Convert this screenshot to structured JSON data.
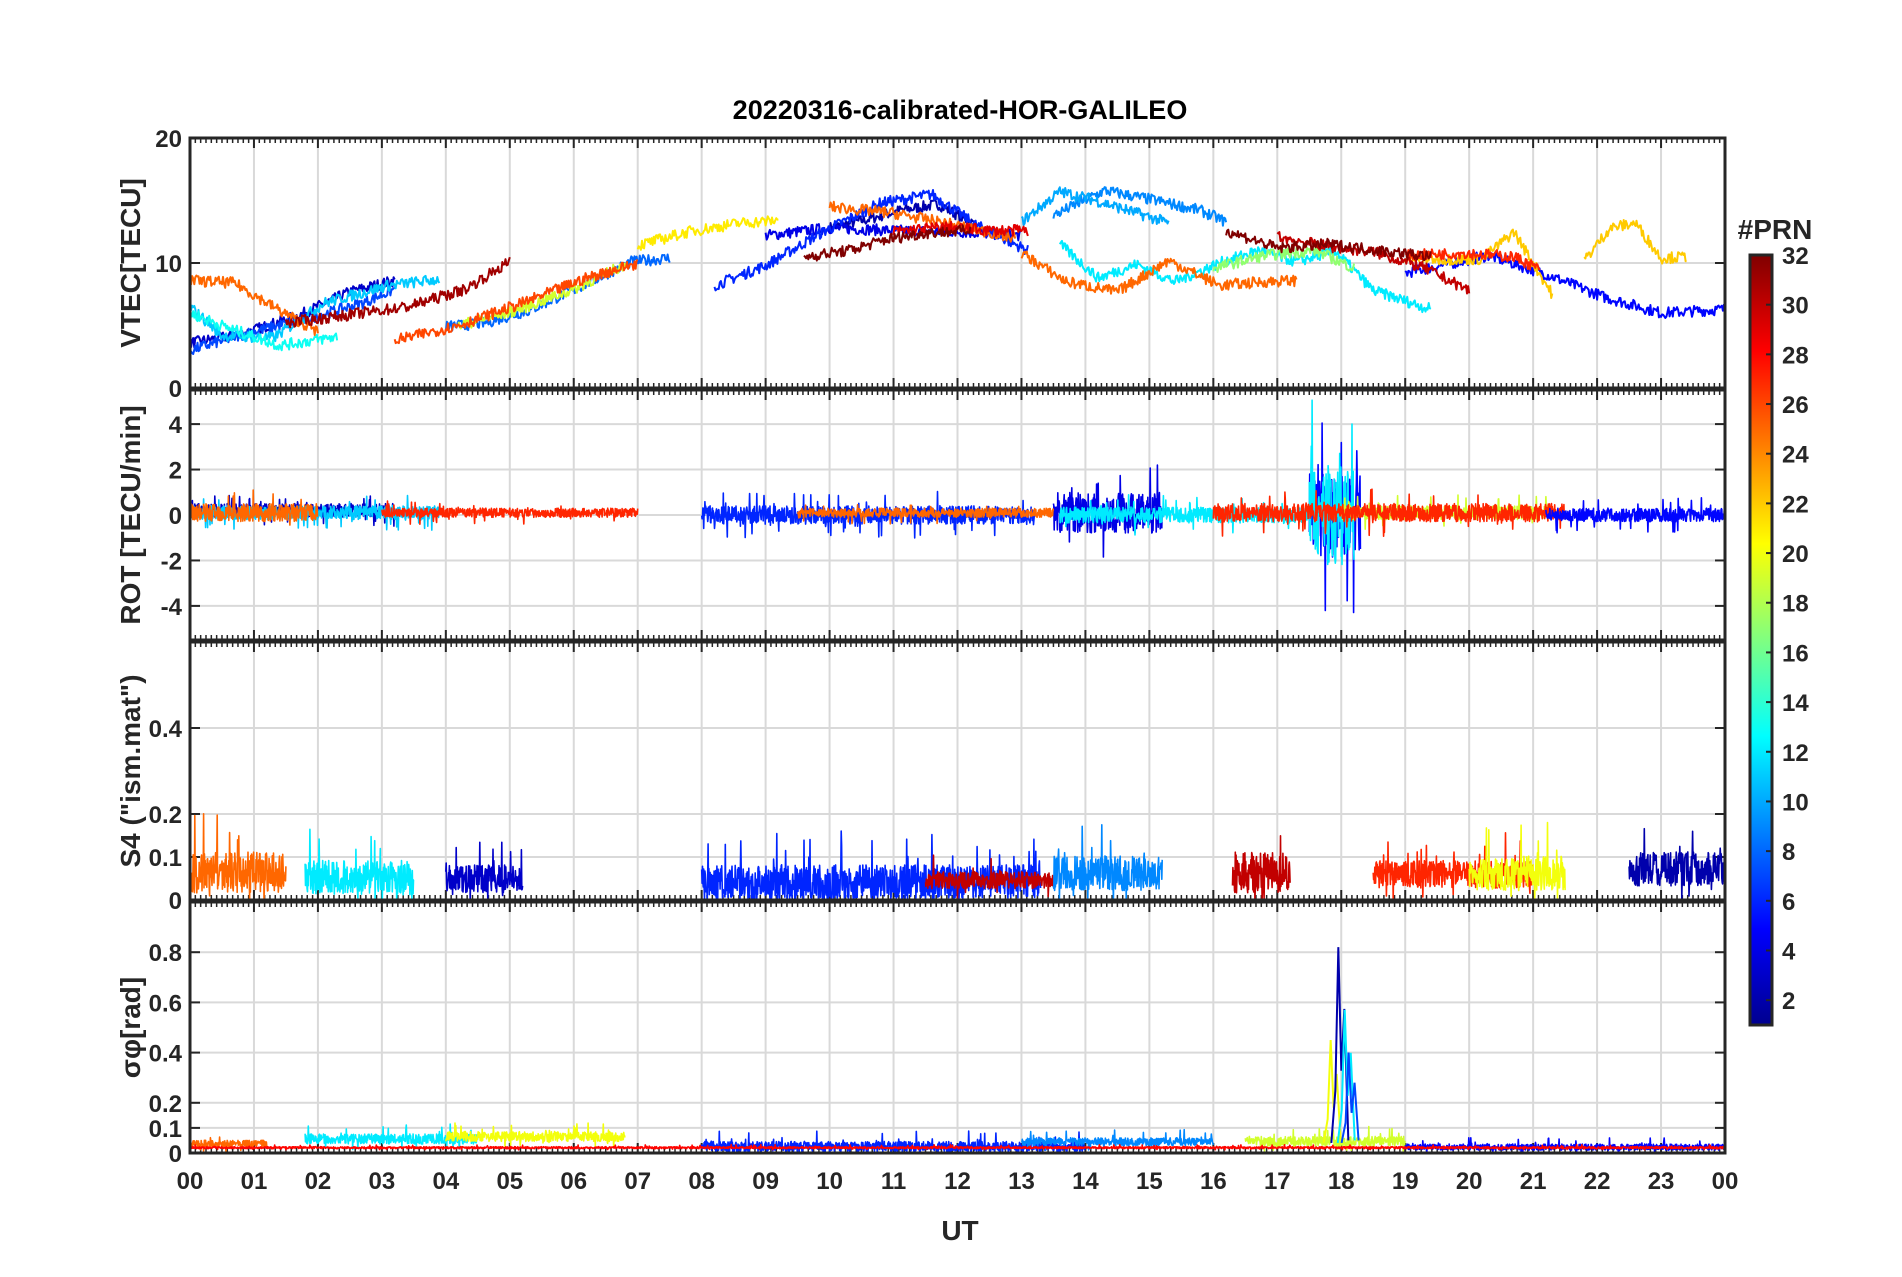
{
  "chart_data": {
    "type": "line",
    "title": "20220316-calibrated-HOR-GALILEO",
    "xlabel": "UT",
    "x_tick_labels": [
      "00",
      "01",
      "02",
      "03",
      "04",
      "05",
      "06",
      "07",
      "08",
      "09",
      "10",
      "11",
      "12",
      "13",
      "14",
      "15",
      "16",
      "17",
      "18",
      "19",
      "20",
      "21",
      "22",
      "23",
      "00"
    ],
    "xlim": [
      0,
      24
    ],
    "grid": true,
    "colorbar": {
      "title": "#PRN",
      "range": [
        1,
        32
      ],
      "tick_labels": [
        "2",
        "4",
        "6",
        "8",
        "10",
        "12",
        "14",
        "16",
        "18",
        "20",
        "22",
        "24",
        "26",
        "28",
        "30",
        "32"
      ],
      "colormap": [
        "#00008f",
        "#0000ff",
        "#0080ff",
        "#00ffff",
        "#80ff80",
        "#ffff00",
        "#ff8000",
        "#ff0000",
        "#800000"
      ]
    },
    "panels": [
      {
        "id": "vtec",
        "ylabel": "VTEC[TECU]",
        "ylim": [
          0,
          20
        ],
        "y_tick_labels": [
          "0",
          "10",
          "20"
        ],
        "series": [
          {
            "prn": 2,
            "t": [
              10.0,
              10.6,
              11.1,
              11.7,
              12.3
            ],
            "y": [
              12.8,
              13.5,
              14.2,
              14.7,
              13.0
            ]
          },
          {
            "prn": 3,
            "t": [
              0.0,
              0.8,
              1.7,
              2.5,
              3.2
            ],
            "y": [
              3.6,
              4.3,
              5.8,
              7.7,
              8.6
            ]
          },
          {
            "prn": 4,
            "t": [
              9.0,
              10.0,
              11.0,
              12.0,
              13.0
            ],
            "y": [
              12.2,
              12.8,
              12.6,
              12.5,
              12.2
            ]
          },
          {
            "prn": 5,
            "t": [
              19.0,
              20.3,
              21.2,
              22.1,
              23.0,
              24.0
            ],
            "y": [
              9.2,
              10.6,
              9.1,
              7.3,
              6.0,
              6.3
            ]
          },
          {
            "prn": 6,
            "t": [
              8.2,
              9.0,
              9.9,
              10.8,
              11.6,
              12.3,
              13.1
            ],
            "y": [
              8.2,
              9.8,
              12.5,
              14.8,
              15.5,
              13.0,
              11.0
            ]
          },
          {
            "prn": 7,
            "t": [
              0.0,
              0.9,
              1.8,
              2.7,
              3.2
            ],
            "y": [
              3.0,
              4.4,
              5.5,
              6.8,
              7.9
            ]
          },
          {
            "prn": 8,
            "t": [
              4.0,
              4.6,
              5.3,
              6.1,
              6.9,
              7.5
            ],
            "y": [
              4.9,
              5.2,
              6.2,
              8.1,
              10.1,
              10.4
            ]
          },
          {
            "prn": 9,
            "t": [
              13.5,
              14.3,
              15.1,
              15.8,
              16.2
            ],
            "y": [
              13.8,
              15.8,
              15.0,
              14.2,
              13.3
            ]
          },
          {
            "prn": 10,
            "t": [
              13.0,
              13.6,
              14.1,
              14.8,
              15.3
            ],
            "y": [
              13.3,
              15.7,
              15.1,
              14.0,
              13.2
            ]
          },
          {
            "prn": 11,
            "t": [
              0.0,
              0.5,
              1.3,
              2.1,
              3.1,
              3.9
            ],
            "y": [
              6.5,
              4.2,
              4.0,
              6.8,
              8.2,
              8.7
            ]
          },
          {
            "prn": 12,
            "t": [
              13.6,
              14.2,
              14.8,
              15.4,
              16.1,
              16.7,
              17.3,
              17.9,
              18.5,
              19.4
            ],
            "y": [
              11.5,
              8.8,
              9.9,
              8.5,
              10.0,
              11.0,
              10.1,
              11.0,
              7.8,
              6.3
            ]
          },
          {
            "prn": 13,
            "t": [
              0.0,
              0.6,
              1.4,
              2.3
            ],
            "y": [
              6.0,
              4.8,
              3.4,
              4.1
            ]
          },
          {
            "prn": 17,
            "t": [
              16.0,
              16.8,
              17.6,
              18.2
            ],
            "y": [
              9.6,
              10.6,
              11.0,
              9.6
            ]
          },
          {
            "prn": 19,
            "t": [
              4.2,
              5.1,
              6.0,
              6.8
            ],
            "y": [
              5.0,
              6.2,
              7.9,
              9.9
            ]
          },
          {
            "prn": 21,
            "t": [
              7.0,
              7.8,
              8.6,
              9.2
            ],
            "y": [
              11.4,
              12.5,
              13.2,
              13.4
            ]
          },
          {
            "prn": 22,
            "t": [
              19.0,
              19.6,
              20.2,
              20.7,
              21.3
            ],
            "y": [
              10.4,
              10.3,
              10.3,
              12.5,
              7.5
            ]
          },
          {
            "prn": 22,
            "t": [
              21.8,
              22.2,
              22.6,
              23.0,
              23.4
            ],
            "y": [
              10.2,
              12.8,
              13.2,
              10.4,
              10.5
            ]
          },
          {
            "prn": 25,
            "t": [
              0.0,
              0.7,
              1.4,
              2.0
            ],
            "y": [
              8.6,
              8.4,
              6.2,
              4.5
            ]
          },
          {
            "prn": 25,
            "t": [
              10.0,
              11.0,
              12.0,
              12.9
            ],
            "y": [
              14.5,
              14.0,
              13.0,
              12.0
            ]
          },
          {
            "prn": 25,
            "t": [
              13.0,
              13.7,
              14.5,
              15.3,
              16.1,
              16.8,
              17.3
            ],
            "y": [
              10.8,
              8.5,
              7.7,
              10.2,
              8.2,
              8.5,
              8.6
            ]
          },
          {
            "prn": 26,
            "t": [
              3.2,
              4.2,
              5.2,
              6.2,
              7.0
            ],
            "y": [
              3.8,
              5.0,
              6.8,
              8.8,
              10.0
            ]
          },
          {
            "prn": 27,
            "t": [
              19.0,
              19.9,
              20.7,
              21.1
            ],
            "y": [
              10.6,
              10.8,
              10.5,
              9.5
            ]
          },
          {
            "prn": 29,
            "t": [
              11.0,
              11.8,
              12.5,
              13.1
            ],
            "y": [
              12.5,
              12.9,
              12.6,
              12.6
            ]
          },
          {
            "prn": 30,
            "t": [
              17.0,
              17.8,
              18.5,
              19.3,
              20.0
            ],
            "y": [
              12.1,
              11.3,
              10.9,
              9.6,
              7.8
            ]
          },
          {
            "prn": 31,
            "t": [
              1.5,
              2.4,
              3.4,
              4.3,
              5.0
            ],
            "y": [
              5.2,
              5.8,
              6.5,
              7.9,
              10.1
            ]
          },
          {
            "prn": 32,
            "t": [
              9.6,
              10.3,
              10.9,
              11.5,
              12.2
            ],
            "y": [
              10.5,
              11.0,
              11.9,
              12.4,
              12.6
            ]
          },
          {
            "prn": 32,
            "t": [
              16.2,
              17.0,
              17.8,
              18.6,
              19.4
            ],
            "y": [
              12.6,
              11.2,
              11.5,
              11.0,
              10.5
            ]
          }
        ]
      },
      {
        "id": "rot",
        "ylabel": "ROT [TECU/min]",
        "ylim": [
          -5.5,
          5.5
        ],
        "y_tick_labels": [
          "-4",
          "-2",
          "0",
          "2",
          "4"
        ],
        "series": [
          {
            "prn": 3,
            "t": [
              0.0,
              3.2
            ],
            "y": [
              0.2,
              0.2
            ],
            "spread": 0.6
          },
          {
            "prn": 4,
            "t": [
              13.5,
              15.2
            ],
            "y": [
              0.1,
              0.1
            ],
            "spread": 1.8
          },
          {
            "prn": 11,
            "t": [
              0.0,
              3.9
            ],
            "y": [
              0.1,
              0.1
            ],
            "spread": 0.6
          },
          {
            "prn": 25,
            "t": [
              0.0,
              2.0
            ],
            "y": [
              0.1,
              0.1
            ],
            "spread": 0.8
          },
          {
            "prn": 6,
            "t": [
              8.0,
              13.2
            ],
            "y": [
              0.0,
              0.0
            ],
            "spread": 0.8
          },
          {
            "prn": 25,
            "t": [
              9.5,
              13.5
            ],
            "y": [
              0.1,
              0.1
            ],
            "spread": 0.4
          },
          {
            "prn": 27,
            "t": [
              3.0,
              7.0
            ],
            "y": [
              0.1,
              0.1
            ],
            "spread": 0.4
          },
          {
            "prn": 12,
            "t": [
              13.6,
              17.6
            ],
            "y": [
              0.0,
              0.0
            ],
            "spread": 0.7
          },
          {
            "prn": 5,
            "t": [
              17.5,
              18.3
            ],
            "y": [
              0.0,
              0.0
            ],
            "spread": 3.6
          },
          {
            "prn": 12,
            "t": [
              17.5,
              18.2
            ],
            "y": [
              0.0,
              0.0
            ],
            "spread": 4.4
          },
          {
            "prn": 19,
            "t": [
              18.0,
              21.3
            ],
            "y": [
              0.1,
              0.1
            ],
            "spread": 0.6
          },
          {
            "prn": 27,
            "t": [
              16.0,
              21.5
            ],
            "y": [
              0.1,
              0.1
            ],
            "spread": 0.8
          },
          {
            "prn": 5,
            "t": [
              21.2,
              24.0
            ],
            "y": [
              0.0,
              0.0
            ],
            "spread": 0.6
          }
        ]
      },
      {
        "id": "s4",
        "ylabel": "S4 (\"ism.mat\")",
        "ylim": [
          0,
          0.6
        ],
        "y_tick_labels": [
          "0",
          "0.1",
          "0.2",
          "0.4"
        ],
        "series": [
          {
            "prn": 25,
            "t": [
              0.0,
              1.5
            ],
            "y": [
              0.05,
              0.05
            ],
            "spread": 0.12
          },
          {
            "prn": 12,
            "t": [
              1.8,
              3.5
            ],
            "y": [
              0.04,
              0.04
            ],
            "spread": 0.1
          },
          {
            "prn": 3,
            "t": [
              4.0,
              5.2
            ],
            "y": [
              0.04,
              0.04
            ],
            "spread": 0.08
          },
          {
            "prn": 6,
            "t": [
              8.0,
              13.3
            ],
            "y": [
              0.03,
              0.03
            ],
            "spread": 0.1
          },
          {
            "prn": 30,
            "t": [
              11.5,
              13.5
            ],
            "y": [
              0.04,
              0.04
            ],
            "spread": 0.05
          },
          {
            "prn": 9,
            "t": [
              13.5,
              15.2
            ],
            "y": [
              0.05,
              0.05
            ],
            "spread": 0.1
          },
          {
            "prn": 30,
            "t": [
              16.3,
              17.2
            ],
            "y": [
              0.05,
              0.05
            ],
            "spread": 0.12
          },
          {
            "prn": 27,
            "t": [
              18.5,
              21.0
            ],
            "y": [
              0.05,
              0.05
            ],
            "spread": 0.08
          },
          {
            "prn": 20,
            "t": [
              20.0,
              21.5
            ],
            "y": [
              0.05,
              0.05
            ],
            "spread": 0.1
          },
          {
            "prn": 2,
            "t": [
              22.5,
              24.0
            ],
            "y": [
              0.06,
              0.06
            ],
            "spread": 0.1
          }
        ]
      },
      {
        "id": "sigma",
        "ylabel": "σφ[rad]",
        "ylim": [
          0,
          1.0
        ],
        "y_tick_labels": [
          "0",
          "0.1",
          "0.2",
          "0.4",
          "0.6",
          "0.8"
        ],
        "series": [
          {
            "prn": 25,
            "t": [
              0.0,
              1.2
            ],
            "y": [
              0.03,
              0.03
            ],
            "spread": 0.04
          },
          {
            "prn": 12,
            "t": [
              1.8,
              4.5
            ],
            "y": [
              0.05,
              0.05
            ],
            "spread": 0.05
          },
          {
            "prn": 20,
            "t": [
              4.0,
              6.8
            ],
            "y": [
              0.06,
              0.06
            ],
            "spread": 0.05
          },
          {
            "prn": 6,
            "t": [
              8.0,
              14.0
            ],
            "y": [
              0.02,
              0.02
            ],
            "spread": 0.05
          },
          {
            "prn": 9,
            "t": [
              13.0,
              16.0
            ],
            "y": [
              0.04,
              0.04
            ],
            "spread": 0.04
          },
          {
            "prn": 19,
            "t": [
              16.5,
              19.0
            ],
            "y": [
              0.04,
              0.04
            ],
            "spread": 0.05
          },
          {
            "prn": 5,
            "t": [
              19.0,
              24.0
            ],
            "y": [
              0.02,
              0.02
            ],
            "spread": 0.03
          },
          {
            "prn": 28,
            "t": [
              0.0,
              24.0
            ],
            "y": [
              0.02,
              0.02
            ],
            "spread": 0.01
          }
        ],
        "spikes": [
          {
            "prn": 20,
            "t": 17.85,
            "y": 0.45
          },
          {
            "prn": 2,
            "t": 17.97,
            "y": 0.82
          },
          {
            "prn": 12,
            "t": 18.07,
            "y": 0.57
          },
          {
            "prn": 7,
            "t": 18.13,
            "y": 0.4
          }
        ]
      }
    ]
  }
}
